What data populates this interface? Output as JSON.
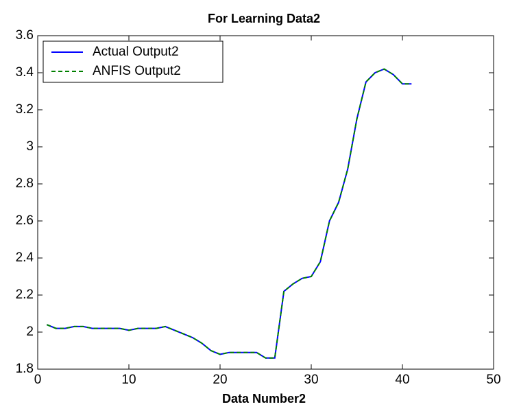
{
  "chart_data": {
    "type": "line",
    "title": "For Learning Data2",
    "xlabel": "Data Number2",
    "x": [
      1,
      2,
      3,
      4,
      5,
      6,
      7,
      8,
      9,
      10,
      11,
      12,
      13,
      14,
      15,
      16,
      17,
      18,
      19,
      20,
      21,
      22,
      23,
      24,
      25,
      26,
      27,
      28,
      29,
      30,
      31,
      32,
      33,
      34,
      35,
      36,
      37,
      38,
      39,
      40,
      41
    ],
    "series": [
      {
        "name": "Actual Output2",
        "color": "#0000ff",
        "dash": false,
        "values": [
          2.04,
          2.02,
          2.02,
          2.03,
          2.03,
          2.02,
          2.02,
          2.02,
          2.02,
          2.01,
          2.02,
          2.02,
          2.02,
          2.03,
          2.01,
          1.99,
          1.97,
          1.94,
          1.9,
          1.88,
          1.89,
          1.89,
          1.89,
          1.89,
          1.86,
          1.86,
          2.22,
          2.26,
          2.29,
          2.3,
          2.38,
          2.6,
          2.7,
          2.88,
          3.15,
          3.35,
          3.4,
          3.42,
          3.39,
          3.34,
          3.34
        ]
      },
      {
        "name": "ANFIS Output2",
        "color": "#008000",
        "dash": true,
        "values": [
          2.04,
          2.02,
          2.02,
          2.03,
          2.03,
          2.02,
          2.02,
          2.02,
          2.02,
          2.01,
          2.02,
          2.02,
          2.02,
          2.03,
          2.01,
          1.99,
          1.97,
          1.94,
          1.9,
          1.88,
          1.89,
          1.89,
          1.89,
          1.89,
          1.86,
          1.86,
          2.22,
          2.26,
          2.29,
          2.3,
          2.38,
          2.6,
          2.7,
          2.88,
          3.15,
          3.35,
          3.4,
          3.42,
          3.39,
          3.34,
          3.34
        ]
      }
    ],
    "xlim": [
      0,
      50
    ],
    "xticks": [
      0,
      10,
      20,
      30,
      40,
      50
    ],
    "ylim": [
      1.8,
      3.6
    ],
    "yticks": [
      1.8,
      2,
      2.2,
      2.4,
      2.6,
      2.8,
      3,
      3.2,
      3.4,
      3.6
    ],
    "grid": false,
    "legend": "upper-left"
  }
}
